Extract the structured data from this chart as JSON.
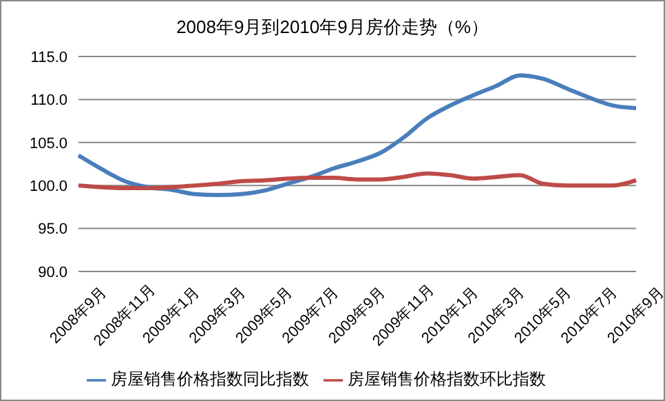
{
  "chart_data": {
    "type": "line",
    "title": "2008年9月到2010年9月房价走势（%）",
    "categories": [
      "2008年9月",
      null,
      "2008年11月",
      null,
      "2009年1月",
      null,
      "2009年3月",
      null,
      "2009年5月",
      null,
      "2009年7月",
      null,
      "2009年9月",
      null,
      "2009年11月",
      null,
      "2010年1月",
      null,
      "2010年3月",
      null,
      "2010年5月",
      null,
      "2010年7月",
      null,
      "2010年9月"
    ],
    "series": [
      {
        "name": "房屋销售价格指数同比指数",
        "color": "#4a7ebb",
        "values": [
          103.5,
          101.9,
          100.5,
          99.8,
          99.5,
          99.0,
          98.9,
          99.0,
          99.4,
          100.2,
          101.0,
          102.0,
          102.8,
          103.8,
          105.6,
          107.8,
          109.3,
          110.5,
          111.6,
          112.8,
          112.4,
          111.3,
          110.2,
          109.3,
          109.0
        ]
      },
      {
        "name": "房屋销售价格指数环比指数",
        "color": "#be4b48",
        "values": [
          100.0,
          99.8,
          99.7,
          99.7,
          99.8,
          100.0,
          100.2,
          100.5,
          100.6,
          100.8,
          100.9,
          100.9,
          100.7,
          100.7,
          101.0,
          101.4,
          101.2,
          100.8,
          101.0,
          101.2,
          100.2,
          100.0,
          100.0,
          100.0,
          100.6
        ]
      }
    ],
    "ylim": [
      90,
      115
    ],
    "yticks": [
      {
        "value": 90,
        "label": "90.0"
      },
      {
        "value": 95,
        "label": "95.0"
      },
      {
        "value": 100,
        "label": "100.0"
      },
      {
        "value": 105,
        "label": "105.0"
      },
      {
        "value": 110,
        "label": "110.0"
      },
      {
        "value": 115,
        "label": "115.0"
      }
    ],
    "grid": "y",
    "legend": "bottom",
    "marker": "none",
    "line_style": "solid"
  }
}
